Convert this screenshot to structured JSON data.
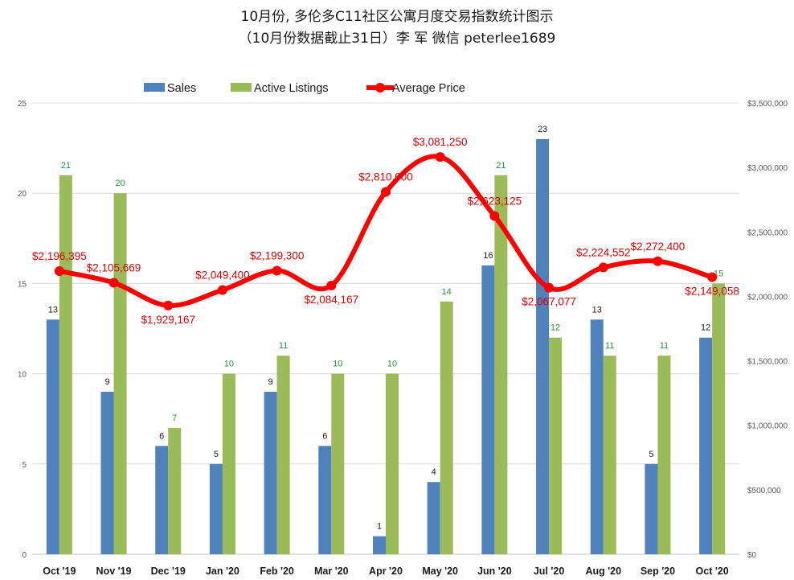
{
  "title": {
    "line1": "10月份, 多伦多C11社区公寓月度交易指数统计图示",
    "line2": "（10月份数据截止31日）李 军  微信  peterlee1689"
  },
  "colors": {
    "sales": "#4f81bd",
    "listings": "#9bbb59",
    "price": "#ff0000",
    "price_label": "#e00000",
    "listing_label": "#1a9a3a",
    "grid": "#d9d9d9"
  },
  "chart_data": {
    "type": "bar",
    "categories": [
      "Oct '19",
      "Nov '19",
      "Dec '19",
      "Jan '20",
      "Feb '20",
      "Mar '20",
      "Apr '20",
      "May '20",
      "Jun '20",
      "Jul '20",
      "Aug '20",
      "Sep '20",
      "Oct '20"
    ],
    "series": [
      {
        "name": "Sales",
        "type": "bar",
        "axis": "left",
        "values": [
          13,
          9,
          6,
          5,
          9,
          6,
          1,
          4,
          16,
          23,
          13,
          5,
          12
        ]
      },
      {
        "name": "Active Listings",
        "type": "bar",
        "axis": "left",
        "values": [
          21,
          20,
          7,
          10,
          11,
          10,
          10,
          14,
          21,
          12,
          11,
          11,
          15
        ]
      },
      {
        "name": "Average Price",
        "type": "line",
        "axis": "right",
        "values": [
          2196395,
          2105669,
          1929167,
          2049400,
          2199300,
          2084167,
          2810000,
          3081250,
          2623125,
          2067077,
          2224552,
          2272400,
          2149058
        ]
      }
    ],
    "price_labels": [
      "$2,196,395",
      "$2,105,669",
      "$1,929,167",
      "$2,049,400",
      "$2,199,300",
      "$2,084,167",
      "$2,810,000",
      "$3,081,250",
      "$2,623,125",
      "$2,067,077",
      "$2,224,552",
      "$2,272,400",
      "$2,149,058"
    ],
    "y_left": {
      "min": 0,
      "max": 25,
      "ticks": [
        "0",
        "5",
        "10",
        "15",
        "20",
        "25"
      ]
    },
    "y_right": {
      "min": 0,
      "max": 3500000,
      "ticks": [
        "$0",
        "$500,000",
        "$1,000,000",
        "$1,500,000",
        "$2,000,000",
        "$2,500,000",
        "$3,000,000",
        "$3,500,000"
      ]
    },
    "legend": [
      "Sales",
      "Active Listings",
      "Average Price"
    ],
    "legend_position": "top",
    "grid": true
  }
}
